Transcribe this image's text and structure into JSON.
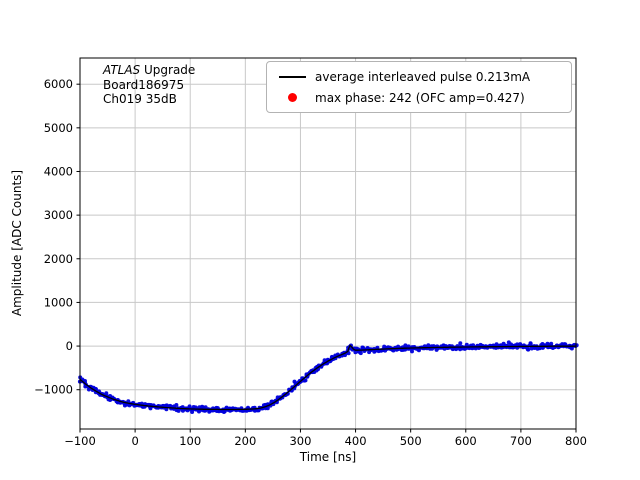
{
  "chart_data": {
    "type": "scatter",
    "title": "",
    "xlabel": "Time [ns]",
    "ylabel": "Amplitude [ADC Counts]",
    "xlim": [
      -100,
      800
    ],
    "ylim": [
      -1900,
      6600
    ],
    "xticks": [
      -100,
      0,
      100,
      200,
      300,
      400,
      500,
      600,
      700,
      800
    ],
    "yticks": [
      -1000,
      0,
      1000,
      2000,
      3000,
      4000,
      5000,
      6000
    ],
    "grid": true,
    "grid_color": "#c8c8c8",
    "annotation": {
      "title_italic": "ATLAS",
      "title_rest": " Upgrade",
      "line2": "Board186975",
      "line3": "Ch019 35dB"
    },
    "legend": {
      "position": "upper right",
      "entries": [
        {
          "type": "line",
          "color": "#000000",
          "label": "average interleaved pulse 0.213mA"
        },
        {
          "type": "marker",
          "color": "#ff0000",
          "label": "max phase: 242 (OFC amp=0.427)"
        }
      ]
    },
    "series": [
      {
        "name": "average interleaved pulse 0.213mA",
        "display": "scatter+line",
        "marker_color": "#0000dd",
        "line_color": "#000000",
        "noise_sigma": 30,
        "x": [
          -100,
          -90,
          -80,
          -70,
          -60,
          -50,
          -40,
          -30,
          -20,
          -10,
          0,
          10,
          20,
          30,
          40,
          50,
          60,
          70,
          80,
          90,
          100,
          120,
          140,
          160,
          180,
          200,
          210,
          220,
          228,
          236,
          244,
          252,
          260,
          268,
          276,
          284,
          292,
          300,
          310,
          320,
          330,
          340,
          350,
          360,
          370,
          375,
          380,
          385,
          387,
          389,
          391,
          393,
          396,
          400,
          410,
          420,
          440,
          460,
          480,
          500,
          525,
          550,
          575,
          600,
          650,
          700,
          750,
          800
        ],
        "y": [
          -760,
          -870,
          -960,
          -1040,
          -1110,
          -1165,
          -1215,
          -1255,
          -1290,
          -1315,
          -1335,
          -1352,
          -1367,
          -1380,
          -1392,
          -1403,
          -1412,
          -1420,
          -1428,
          -1434,
          -1440,
          -1447,
          -1451,
          -1453,
          -1453,
          -1449,
          -1444,
          -1436,
          -1420,
          -1392,
          -1350,
          -1295,
          -1228,
          -1152,
          -1070,
          -985,
          -898,
          -810,
          -700,
          -597,
          -505,
          -420,
          -345,
          -278,
          -220,
          -195,
          -168,
          -132,
          -112,
          25,
          8,
          -18,
          -70,
          -95,
          -92,
          -88,
          -74,
          -63,
          -53,
          -45,
          -37,
          -31,
          -26,
          -21,
          -14,
          -8,
          -4,
          -2
        ]
      }
    ]
  }
}
